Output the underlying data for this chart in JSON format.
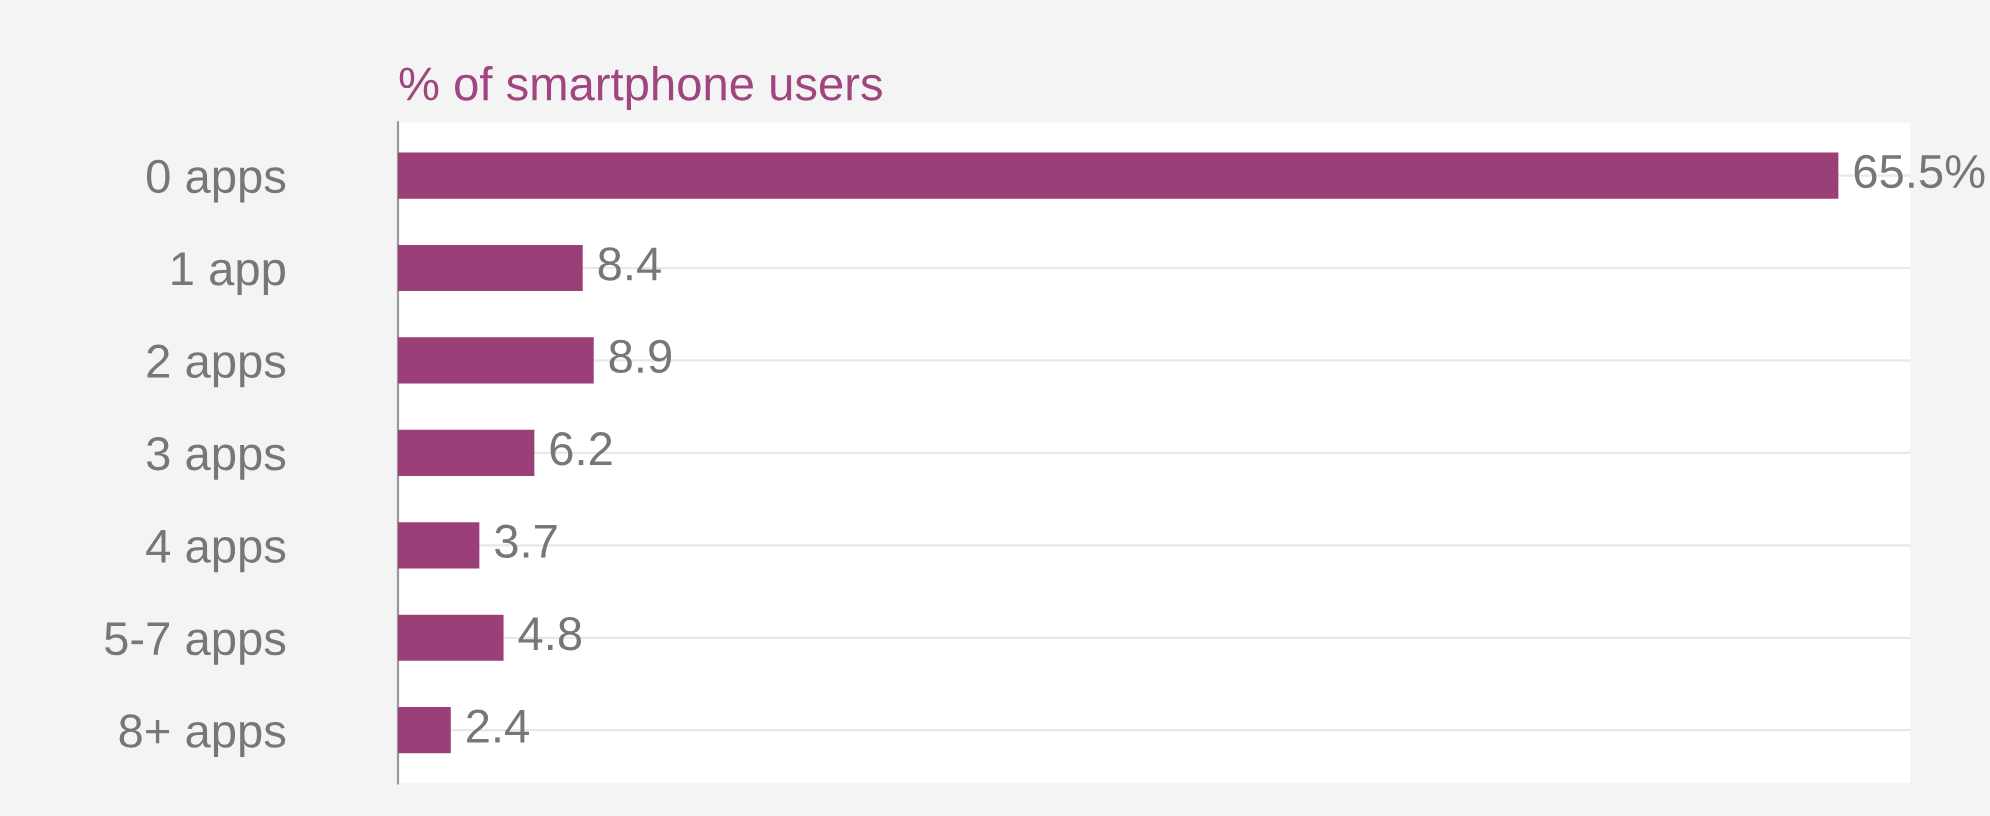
{
  "chart_data": {
    "type": "bar",
    "orientation": "horizontal",
    "title": "% of smartphone users",
    "categories": [
      "0 apps",
      "1 app",
      "2 apps",
      "3 apps",
      "4 apps",
      "5-7 apps",
      "8+ apps"
    ],
    "values": [
      65.5,
      8.4,
      8.9,
      6.2,
      3.7,
      4.8,
      2.4
    ],
    "value_labels": [
      "65.5%",
      "8.4",
      "8.9",
      "6.2",
      "3.7",
      "4.8",
      "2.4"
    ],
    "color": "#9b3f78",
    "grid": "y",
    "legend": false
  }
}
